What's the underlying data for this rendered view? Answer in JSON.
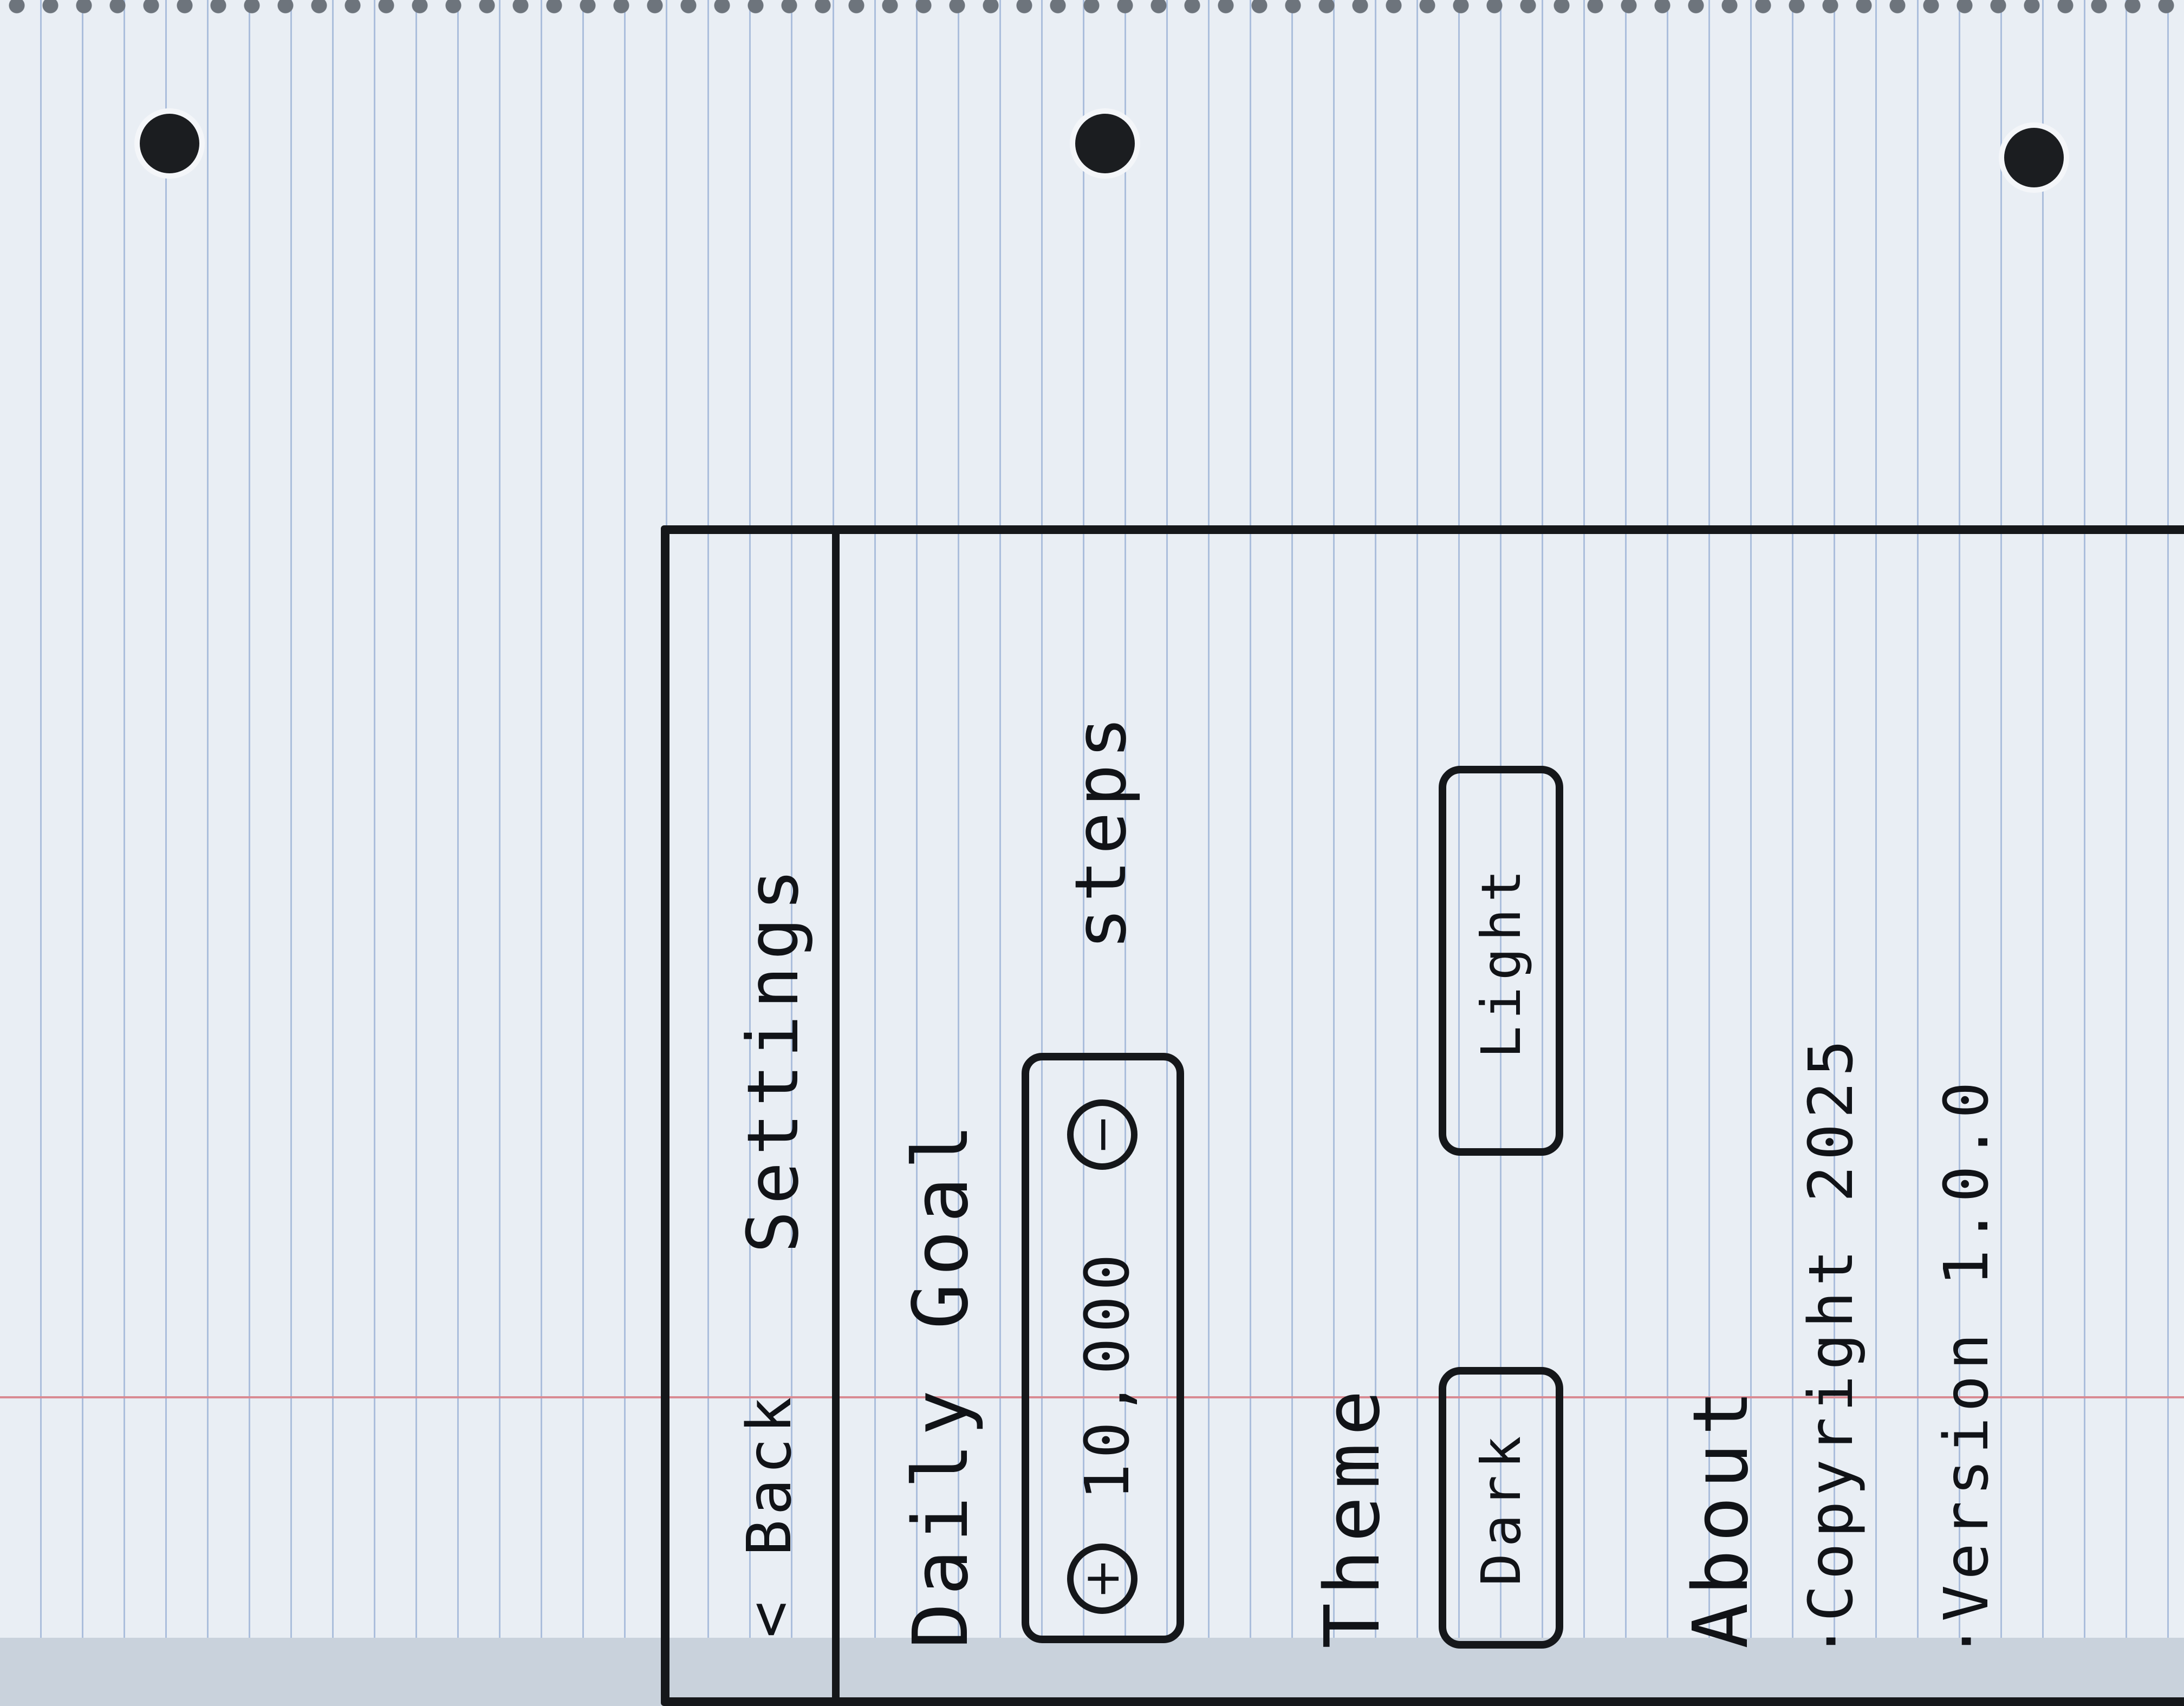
{
  "header": {
    "back_label": "< Back",
    "title": "Settings"
  },
  "daily_goal": {
    "title": "Daily Goal",
    "increment_label": "+",
    "value": "10,000",
    "decrement_label": "−",
    "unit": "steps"
  },
  "theme": {
    "title": "Theme",
    "options": [
      "Dark",
      "Light"
    ]
  },
  "about": {
    "title": "About",
    "items": [
      "Copyright 2025",
      "Version 1.0.0"
    ]
  }
}
